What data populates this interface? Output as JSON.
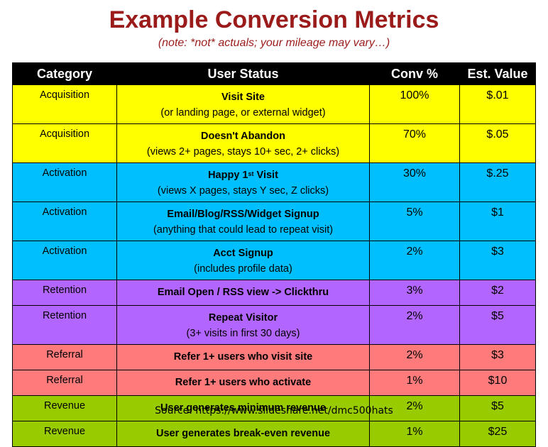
{
  "title": "Example Conversion Metrics",
  "subtitle": "(note: *not* actuals; your mileage may vary…)",
  "headers": [
    "Category",
    "User Status",
    "Conv %",
    "Est. Value"
  ],
  "rows": [
    {
      "category": "Acquisition",
      "status": "Visit Site",
      "detail": "(or landing page, or external widget)",
      "conv": "100%",
      "value": "$.01"
    },
    {
      "category": "Acquisition",
      "status": "Doesn't Abandon",
      "detail": "(views 2+ pages, stays 10+ sec, 2+ clicks)",
      "conv": "70%",
      "value": "$.05"
    },
    {
      "category": "Activation",
      "status": "Happy 1",
      "status_sup": "st",
      "status_after": " Visit",
      "detail": "(views X pages, stays Y sec, Z clicks)",
      "conv": "30%",
      "value": "$.25"
    },
    {
      "category": "Activation",
      "status": "Email/Blog/RSS/Widget Signup",
      "detail": "(anything that could lead to repeat visit)",
      "conv": "5%",
      "value": "$1"
    },
    {
      "category": "Activation",
      "status": "Acct Signup",
      "detail": "(includes profile data)",
      "conv": "2%",
      "value": "$3"
    },
    {
      "category": "Retention",
      "status": "Email Open / RSS view -> Clickthru",
      "conv": "3%",
      "value": "$2"
    },
    {
      "category": "Retention",
      "status": "Repeat Visitor",
      "detail": "(3+ visits in first 30 days)",
      "conv": "2%",
      "value": "$5"
    },
    {
      "category": "Referral",
      "status": "Refer 1+ users who visit site",
      "conv": "2%",
      "value": "$3"
    },
    {
      "category": "Referral",
      "status": "Refer 1+ users who activate",
      "conv": "1%",
      "value": "$10"
    },
    {
      "category": "Revenue",
      "status": "User generates minimum revenue",
      "conv": "2%",
      "value": "$5"
    },
    {
      "category": "Revenue",
      "status": "User generates break-even revenue",
      "conv": "1%",
      "value": "$25"
    }
  ],
  "colors": {
    "title": "#9b1b1b",
    "acquisition": "#ffff00",
    "activation": "#00bfff",
    "retention": "#b366ff",
    "referral": "#ff7b7b",
    "revenue": "#99cc00"
  },
  "source": "Source: https://www.slideshare.net/dmc500hats"
}
